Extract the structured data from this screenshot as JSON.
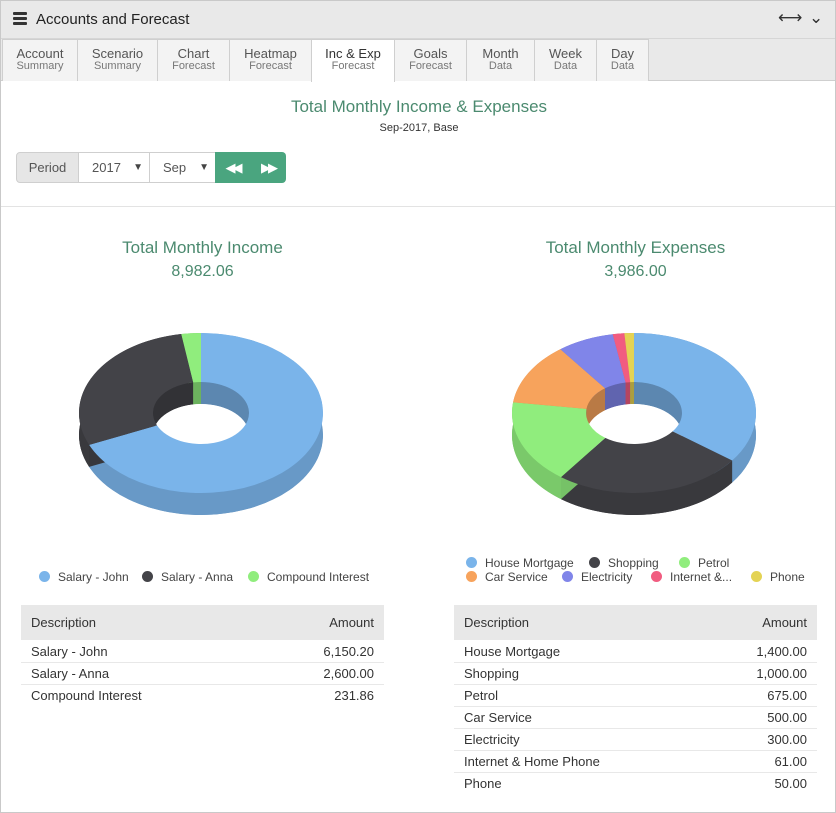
{
  "window": {
    "title": "Accounts and Forecast",
    "icon": "stack-icon",
    "controls": [
      "⟷",
      "⌄"
    ]
  },
  "tabs": [
    {
      "line1": "Account",
      "line2": "Summary",
      "active": false
    },
    {
      "line1": "Scenario",
      "line2": "Summary",
      "active": false
    },
    {
      "line1": "Chart",
      "line2": "Forecast",
      "active": false
    },
    {
      "line1": "Heatmap",
      "line2": "Forecast",
      "active": false
    },
    {
      "line1": "Inc & Exp",
      "line2": "Forecast",
      "active": true
    },
    {
      "line1": "Goals",
      "line2": "Forecast",
      "active": false
    },
    {
      "line1": "Month",
      "line2": "Data",
      "active": false
    },
    {
      "line1": "Week",
      "line2": "Data",
      "active": false
    },
    {
      "line1": "Day",
      "line2": "Data",
      "active": false
    }
  ],
  "report": {
    "title": "Total Monthly Income & Expenses",
    "subtitle": "Sep-2017, Base"
  },
  "period": {
    "label": "Period",
    "year": "2017",
    "month": "Sep",
    "prev_icon": "rewind-icon",
    "next_icon": "fast-forward-icon"
  },
  "colors": {
    "accent": "#4aa57f",
    "title_green": "#4b8a6f"
  },
  "income": {
    "title": "Total Monthly Income",
    "total": "8,982.06",
    "columns": {
      "description": "Description",
      "amount": "Amount"
    },
    "rows": [
      {
        "description": "Salary - John",
        "amount": "6,150.20",
        "value": 6150.2,
        "color": "#7ab4ea",
        "legend": "Salary - John"
      },
      {
        "description": "Salary - Anna",
        "amount": "2,600.00",
        "value": 2600.0,
        "color": "#434348",
        "legend": "Salary - Anna"
      },
      {
        "description": "Compound Interest",
        "amount": "231.86",
        "value": 231.86,
        "color": "#90ed7d",
        "legend": "Compound Interest"
      }
    ]
  },
  "expenses": {
    "title": "Total Monthly Expenses",
    "total": "3,986.00",
    "columns": {
      "description": "Description",
      "amount": "Amount"
    },
    "rows": [
      {
        "description": "House Mortgage",
        "amount": "1,400.00",
        "value": 1400,
        "color": "#7ab4ea",
        "legend": "House Mortgage"
      },
      {
        "description": "Shopping",
        "amount": "1,000.00",
        "value": 1000,
        "color": "#434348",
        "legend": "Shopping"
      },
      {
        "description": "Petrol",
        "amount": "675.00",
        "value": 675,
        "color": "#90ed7d",
        "legend": "Petrol"
      },
      {
        "description": "Car Service",
        "amount": "500.00",
        "value": 500,
        "color": "#f7a35c",
        "legend": "Car Service"
      },
      {
        "description": "Electricity",
        "amount": "300.00",
        "value": 300,
        "color": "#8085e9",
        "legend": "Electricity"
      },
      {
        "description": "Internet & Home Phone",
        "amount": "61.00",
        "value": 61,
        "color": "#f15c80",
        "legend": "Internet &..."
      },
      {
        "description": "Phone",
        "amount": "50.00",
        "value": 50,
        "color": "#e4d354",
        "legend": "Phone"
      }
    ]
  }
}
